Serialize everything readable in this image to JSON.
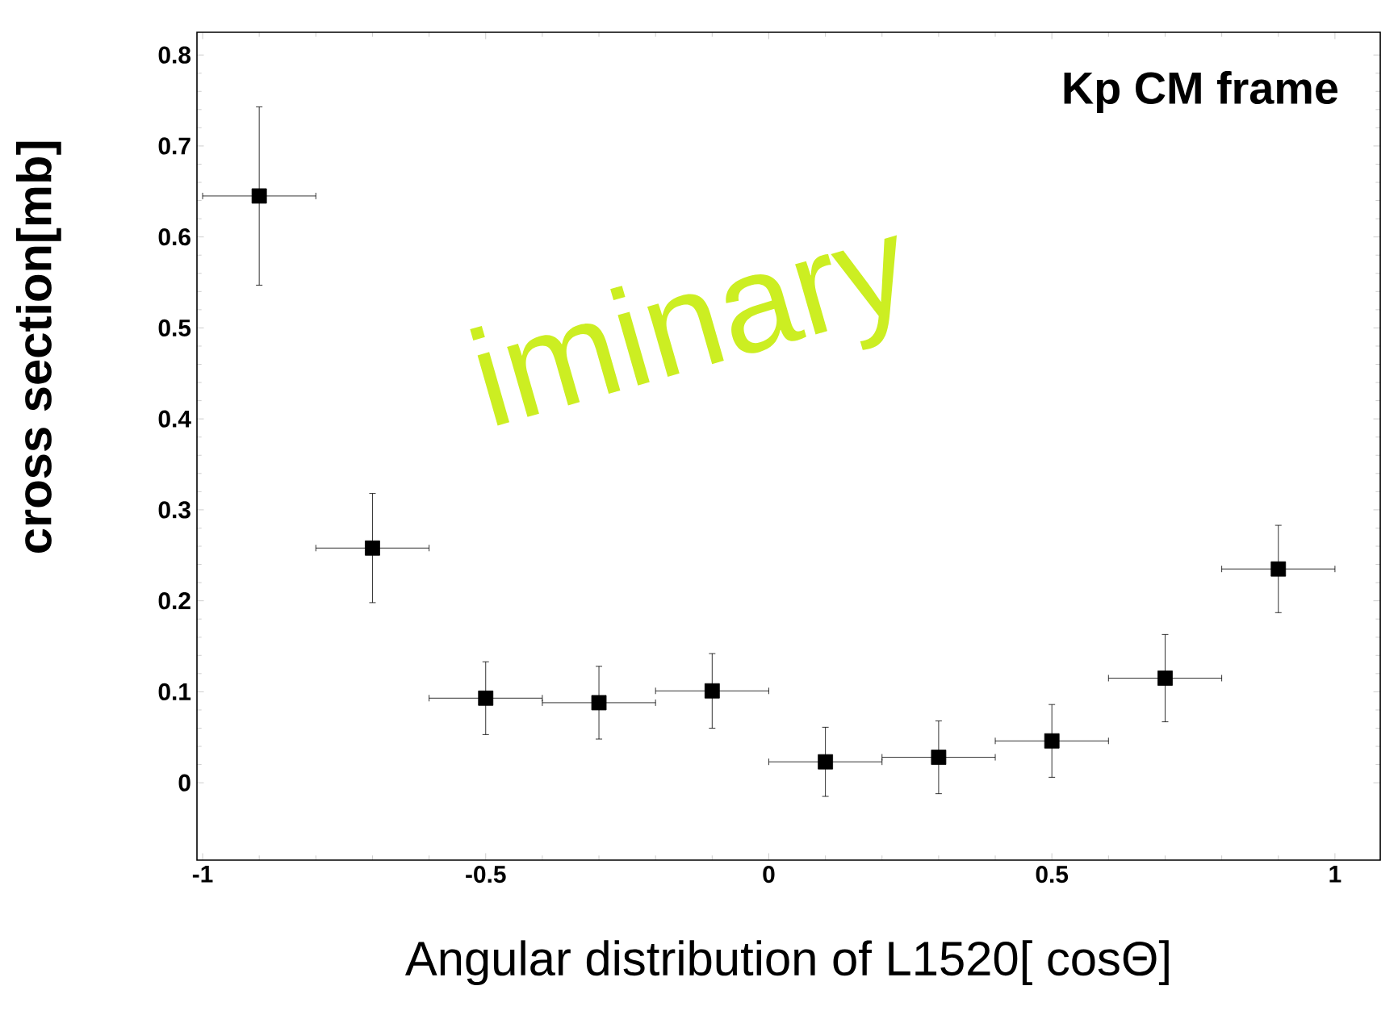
{
  "chart_data": {
    "type": "scatter",
    "title": "Kp CM frame",
    "xlabel": "Angular distribution of L1520[ cosΘ]",
    "ylabel": "cross section[mb]",
    "x": [
      -0.9,
      -0.7,
      -0.5,
      -0.3,
      -0.1,
      0.1,
      0.3,
      0.5,
      0.7,
      0.9
    ],
    "values": [
      0.645,
      0.258,
      0.093,
      0.088,
      0.101,
      0.023,
      0.028,
      0.046,
      0.115,
      0.235
    ],
    "errors": [
      0.098,
      0.06,
      0.04,
      0.04,
      0.041,
      0.038,
      0.04,
      0.04,
      0.048,
      0.048
    ],
    "xerrors": [
      0.1,
      0.1,
      0.1,
      0.1,
      0.1,
      0.1,
      0.1,
      0.1,
      0.1,
      0.1
    ],
    "color": "#000000",
    "marker": "square",
    "xlim": [
      -1.01,
      1.08
    ],
    "ylim": [
      -0.085,
      0.825
    ],
    "xticks": [
      -1,
      -0.5,
      0,
      0.5,
      1
    ],
    "yticks": [
      0,
      0.1,
      0.2,
      0.3,
      0.4,
      0.5,
      0.6,
      0.7,
      0.8
    ],
    "annotations": [
      "iminary"
    ]
  }
}
